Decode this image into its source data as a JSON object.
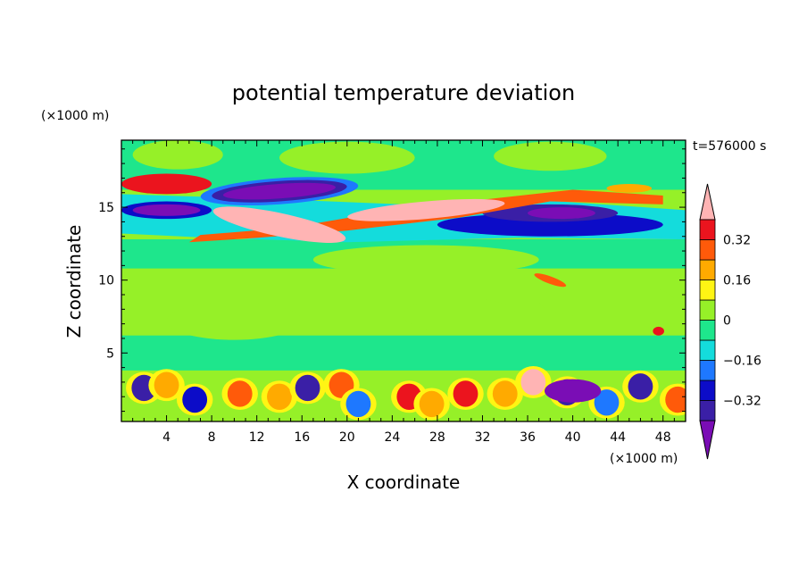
{
  "chart_data": {
    "type": "heatmap",
    "title": "potential temperature deviation",
    "xlabel": "X coordinate",
    "ylabel": "Z coordinate",
    "x_unit": "(×1000 m)",
    "y_unit": "(×1000 m)",
    "time_label": "t=576000 s",
    "xlim": [
      0,
      50
    ],
    "ylim": [
      0.3,
      19.6
    ],
    "x_ticks": [
      4,
      8,
      12,
      16,
      20,
      24,
      28,
      32,
      36,
      40,
      44,
      48
    ],
    "y_ticks": [
      5,
      10,
      15
    ],
    "x_tick_labels": [
      "4",
      "8",
      "12",
      "16",
      "20",
      "24",
      "28",
      "32",
      "36",
      "40",
      "44",
      "48"
    ],
    "y_tick_labels": [
      "5",
      "10",
      "15"
    ],
    "colorbar": {
      "levels": [
        -0.4,
        -0.32,
        -0.24,
        -0.16,
        -0.08,
        0,
        0.08,
        0.16,
        0.24,
        0.32,
        0.4
      ],
      "tick_values": [
        0.32,
        0.16,
        0,
        -0.16,
        -0.32
      ],
      "tick_labels": [
        "0.32",
        "0.16",
        "0",
        "−0.16",
        "−0.32"
      ],
      "colors": [
        "#7a0db5",
        "#3a1fa6",
        "#0c0cc8",
        "#1e78ff",
        "#14dcdc",
        "#1ee68c",
        "#96f028",
        "#fff514",
        "#ffaa00",
        "#ff5a0a",
        "#eb141e",
        "#ffb4b4"
      ],
      "extend": "both"
    },
    "features": [
      {
        "x": [
          0,
          50
        ],
        "z": [
          15.6,
          12.9
        ],
        "value": -0.05,
        "note": "upper cyan/blue jet band"
      },
      {
        "x": [
          9,
          22
        ],
        "z": [
          13.3,
          14.6
        ],
        "value": 0.45
      },
      {
        "x": [
          21,
          35
        ],
        "z": [
          14.5,
          15.6
        ],
        "value": 0.42
      },
      {
        "x": [
          8,
          21
        ],
        "z": [
          15.2,
          16.7
        ],
        "value": -0.42
      },
      {
        "x": [
          33,
          44
        ],
        "z": [
          14.2,
          15.5
        ],
        "value": -0.42
      },
      {
        "x": [
          1,
          7
        ],
        "z": [
          14.2,
          15.4
        ],
        "value": -0.45
      },
      {
        "x": [
          1,
          7
        ],
        "z": [
          16.0,
          16.7
        ],
        "value": 0.42
      },
      {
        "x": [
          0,
          50
        ],
        "z": [
          0.5,
          3.5
        ],
        "value": 0.0,
        "note": "boundary-layer mixed cells"
      }
    ]
  }
}
